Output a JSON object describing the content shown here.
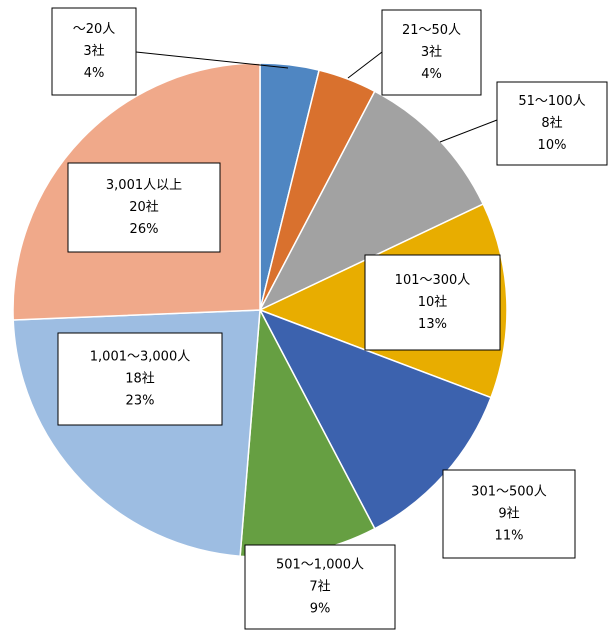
{
  "chart_data": {
    "type": "pie",
    "categories": [
      "～20人",
      "21～50人",
      "51～100人",
      "101～300人",
      "301～500人",
      "501～1,000人",
      "1,001～3,000人",
      "3,001人以上"
    ],
    "values": [
      3,
      3,
      8,
      10,
      9,
      7,
      18,
      20
    ],
    "value_labels": [
      "3社",
      "3社",
      "8社",
      "10社",
      "9社",
      "7社",
      "18社",
      "20社"
    ],
    "percentages": [
      4,
      4,
      10,
      13,
      11,
      9,
      23,
      26
    ],
    "percentage_labels": [
      "4%",
      "4%",
      "10%",
      "13%",
      "11%",
      "9%",
      "23%",
      "26%"
    ],
    "colors": [
      "#4f86c2",
      "#d9712e",
      "#a2a2a2",
      "#e8ad00",
      "#3c62ae",
      "#669f42",
      "#9dbde2",
      "#f0a98a"
    ]
  }
}
